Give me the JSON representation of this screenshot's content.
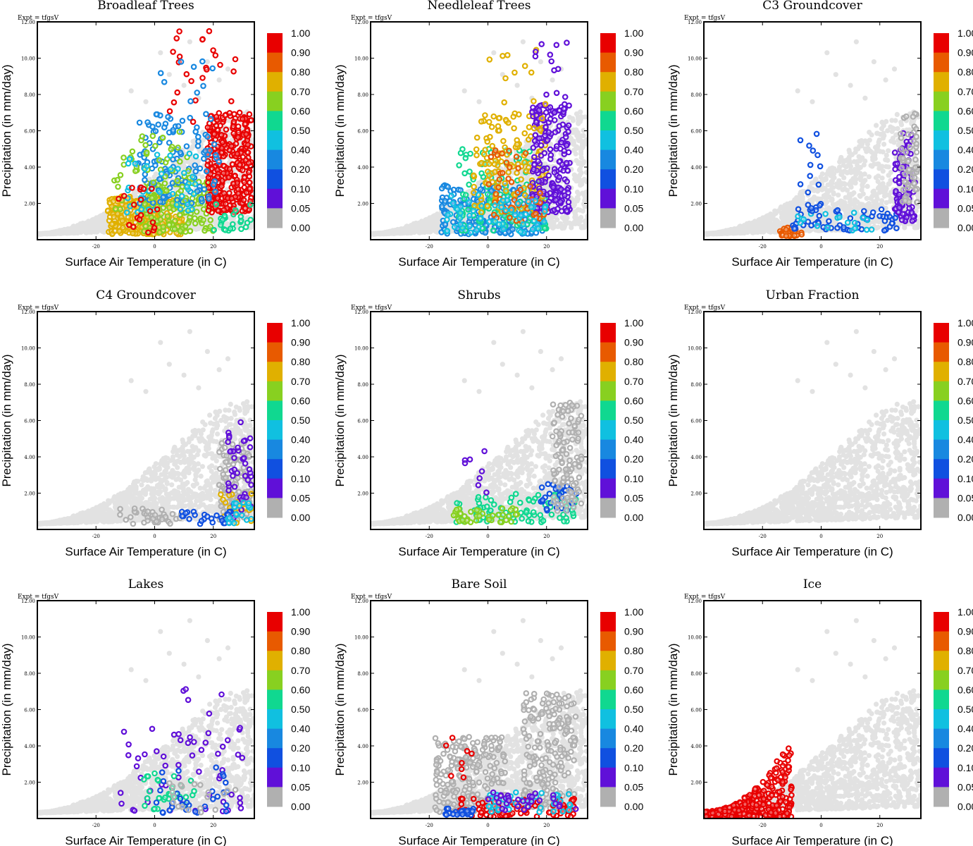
{
  "figure": {
    "expt_label": "Expt = tfgsV",
    "xlabel": "Surface Air Temperature (in C)",
    "ylabel": "Precipitation (in mm/day)"
  },
  "chart_data": {
    "type": "scatter",
    "panels": [
      "Broadleaf Trees",
      "Needleleaf Trees",
      "C3 Groundcover",
      "C4 Groundcover",
      "Shrubs",
      "Urban Fraction",
      "Lakes",
      "Bare Soil",
      "Ice"
    ],
    "xlim": [
      -40,
      34
    ],
    "ylim": [
      0,
      12
    ],
    "x_ticks": [
      -20,
      0,
      20
    ],
    "x_tick_labels": [
      "-20",
      "0",
      "20"
    ],
    "y_ticks": [
      2,
      4,
      6,
      8,
      10,
      12
    ],
    "y_tick_labels": [
      "2.00",
      "4.00",
      "6.00",
      "8.00",
      "10.00",
      "12.00"
    ],
    "colorbar": {
      "labels": [
        "1.00",
        "0.90",
        "0.80",
        "0.70",
        "0.60",
        "0.50",
        "0.40",
        "0.20",
        "0.10",
        "0.05",
        "0.00"
      ],
      "colors": [
        "#e80000",
        "#e85a00",
        "#e0b000",
        "#88d020",
        "#10d890",
        "#10c0e0",
        "#1888e0",
        "#1050e0",
        "#6010d8",
        "#b0b0b0"
      ]
    },
    "background_color": "#e2e2e2",
    "envelope_samples": [
      [
        -38,
        0.3
      ],
      [
        -30,
        0.6
      ],
      [
        -20,
        1.2
      ],
      [
        -10,
        2.2
      ],
      [
        0,
        3.6
      ],
      [
        10,
        5
      ],
      [
        20,
        6.5
      ],
      [
        30,
        7.2
      ],
      [
        34,
        7
      ]
    ],
    "outlier_points": [
      [
        2,
        10.3
      ],
      [
        -8,
        8.2
      ],
      [
        5,
        9.1
      ],
      [
        12,
        10.9
      ],
      [
        18,
        9.8
      ],
      [
        25,
        9.4
      ],
      [
        10,
        8.5
      ],
      [
        22,
        8.8
      ],
      [
        -3,
        7.6
      ],
      [
        15,
        7.8
      ]
    ],
    "clusters": [
      [
        {
          "xr": [
            -16,
            10
          ],
          "yr": [
            0.3,
            2.4
          ],
          "c": 2,
          "n": 260
        },
        {
          "xr": [
            -5,
            20
          ],
          "yr": [
            0.4,
            3.2
          ],
          "c": 3,
          "n": 130
        },
        {
          "xr": [
            18,
            33
          ],
          "yr": [
            1.5,
            7
          ],
          "c": 0,
          "n": 340
        },
        {
          "xr": [
            -6,
            22
          ],
          "yr": [
            2,
            7
          ],
          "c": 6,
          "n": 120
        },
        {
          "xr": [
            -14,
            12
          ],
          "yr": [
            1.5,
            6
          ],
          "c": 3,
          "n": 60
        },
        {
          "xr": [
            -10,
            15
          ],
          "yr": [
            1.5,
            5
          ],
          "c": 5,
          "n": 40
        },
        {
          "xr": [
            5,
            30
          ],
          "yr": [
            6,
            11.5
          ],
          "c": 0,
          "n": 25
        },
        {
          "xr": [
            0,
            20
          ],
          "yr": [
            6,
            10
          ],
          "c": 6,
          "n": 14
        },
        {
          "xr": [
            20,
            33
          ],
          "yr": [
            0.5,
            2
          ],
          "c": 4,
          "n": 25
        },
        {
          "xr": [
            -13,
            2
          ],
          "yr": [
            0.3,
            3
          ],
          "c": 0,
          "n": 20
        }
      ],
      [
        {
          "xr": [
            -16,
            20
          ],
          "yr": [
            0.3,
            3
          ],
          "c": 6,
          "n": 220
        },
        {
          "xr": [
            -10,
            20
          ],
          "yr": [
            0.5,
            5
          ],
          "c": 4,
          "n": 120
        },
        {
          "xr": [
            -5,
            20
          ],
          "yr": [
            1.5,
            7
          ],
          "c": 2,
          "n": 140
        },
        {
          "xr": [
            15,
            28
          ],
          "yr": [
            1.5,
            7.5
          ],
          "c": 8,
          "n": 200
        },
        {
          "xr": [
            0,
            20
          ],
          "yr": [
            1,
            5
          ],
          "c": 1,
          "n": 50
        },
        {
          "xr": [
            0,
            20
          ],
          "yr": [
            6,
            10.5
          ],
          "c": 2,
          "n": 18
        },
        {
          "xr": [
            15,
            28
          ],
          "yr": [
            7,
            11
          ],
          "c": 8,
          "n": 14
        },
        {
          "xr": [
            -15,
            20
          ],
          "yr": [
            0.3,
            2.5
          ],
          "c": 5,
          "n": 60
        }
      ],
      [
        {
          "xr": [
            -14,
            -6
          ],
          "yr": [
            0.2,
            0.7
          ],
          "c": 1,
          "n": 40
        },
        {
          "xr": [
            -10,
            28
          ],
          "yr": [
            0.5,
            1.8
          ],
          "c": 7,
          "n": 60
        },
        {
          "xr": [
            -8,
            20
          ],
          "yr": [
            0.5,
            1.5
          ],
          "c": 5,
          "n": 20
        },
        {
          "xr": [
            25,
            32
          ],
          "yr": [
            1,
            6
          ],
          "c": 8,
          "n": 90
        },
        {
          "xr": [
            -8,
            0
          ],
          "yr": [
            1.5,
            6
          ],
          "c": 7,
          "n": 18
        },
        {
          "xr": [
            27,
            33
          ],
          "yr": [
            2,
            7
          ],
          "c": 9,
          "n": 60
        }
      ],
      [
        {
          "xr": [
            22,
            33
          ],
          "yr": [
            0.5,
            5
          ],
          "c": 9,
          "n": 130
        },
        {
          "xr": [
            -12,
            10
          ],
          "yr": [
            0.3,
            1.2
          ],
          "c": 9,
          "n": 40
        },
        {
          "xr": [
            22,
            33
          ],
          "yr": [
            0.3,
            2
          ],
          "c": 2,
          "n": 25
        },
        {
          "xr": [
            25,
            33
          ],
          "yr": [
            0.3,
            6
          ],
          "c": 8,
          "n": 45
        },
        {
          "xr": [
            5,
            30
          ],
          "yr": [
            0.3,
            1
          ],
          "c": 7,
          "n": 25
        },
        {
          "xr": [
            25,
            33
          ],
          "yr": [
            0.3,
            1.5
          ],
          "c": 5,
          "n": 20
        }
      ],
      [
        {
          "xr": [
            -12,
            30
          ],
          "yr": [
            0.4,
            2
          ],
          "c": 4,
          "n": 90
        },
        {
          "xr": [
            -12,
            10
          ],
          "yr": [
            0.4,
            1.2
          ],
          "c": 3,
          "n": 40
        },
        {
          "xr": [
            18,
            32
          ],
          "yr": [
            1,
            2.5
          ],
          "c": 7,
          "n": 30
        },
        {
          "xr": [
            22,
            32
          ],
          "yr": [
            1,
            7
          ],
          "c": 9,
          "n": 110
        },
        {
          "xr": [
            -8,
            0
          ],
          "yr": [
            2,
            4.5
          ],
          "c": 8,
          "n": 8
        }
      ],
      [],
      [
        {
          "xr": [
            -12,
            30
          ],
          "yr": [
            0.4,
            5
          ],
          "c": 8,
          "n": 50
        },
        {
          "xr": [
            -5,
            15
          ],
          "yr": [
            0.5,
            2.5
          ],
          "c": 4,
          "n": 30
        },
        {
          "xr": [
            0,
            25
          ],
          "yr": [
            0.3,
            3
          ],
          "c": 7,
          "n": 30
        },
        {
          "xr": [
            5,
            30
          ],
          "yr": [
            0.3,
            2
          ],
          "c": 9,
          "n": 20
        },
        {
          "xr": [
            5,
            25
          ],
          "yr": [
            3,
            8
          ],
          "c": 8,
          "n": 10
        }
      ],
      [
        {
          "xr": [
            -18,
            6
          ],
          "yr": [
            0.3,
            4.5
          ],
          "c": 9,
          "n": 230
        },
        {
          "xr": [
            12,
            30
          ],
          "yr": [
            0.5,
            7
          ],
          "c": 9,
          "n": 200
        },
        {
          "xr": [
            -10,
            30
          ],
          "yr": [
            0.1,
            1.2
          ],
          "c": 0,
          "n": 90
        },
        {
          "xr": [
            -15,
            -5
          ],
          "yr": [
            0.2,
            0.6
          ],
          "c": 7,
          "n": 30
        },
        {
          "xr": [
            0,
            30
          ],
          "yr": [
            0.3,
            1.5
          ],
          "c": 5,
          "n": 40
        },
        {
          "xr": [
            0,
            30
          ],
          "yr": [
            0.4,
            1.5
          ],
          "c": 8,
          "n": 30
        },
        {
          "xr": [
            -15,
            -5
          ],
          "yr": [
            2,
            4.5
          ],
          "c": 0,
          "n": 8
        }
      ],
      [
        {
          "xr": [
            -40,
            -10
          ],
          "yr": [
            0.1,
            4.5
          ],
          "c": 0,
          "n": 420,
          "lowerEdge": true
        }
      ]
    ]
  }
}
